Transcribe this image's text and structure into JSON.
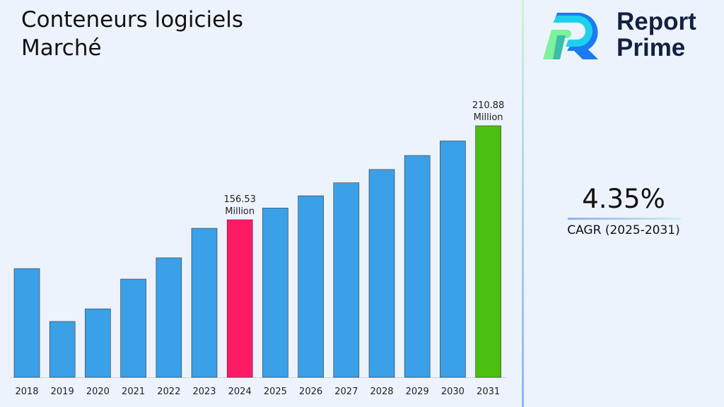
{
  "title_line1": "Conteneurs logiciels",
  "title_line2": "Marché",
  "logo": {
    "line1": "Report",
    "line2": "Prime"
  },
  "cagr": {
    "value": "4.35%",
    "label": "CAGR (2025-2031)"
  },
  "chart_data": {
    "type": "bar",
    "categories": [
      "2018",
      "2019",
      "2020",
      "2021",
      "2022",
      "2023",
      "2024",
      "2025",
      "2026",
      "2027",
      "2028",
      "2029",
      "2030",
      "2031"
    ],
    "values": [
      128.3,
      97.7,
      105.0,
      122.2,
      134.5,
      151.6,
      156.53,
      163.3,
      170.4,
      177.9,
      185.6,
      193.7,
      202.1,
      210.88
    ],
    "ylim": [
      65.4,
      220
    ],
    "grid": false,
    "colors": {
      "default": "#3aa0e8",
      "highlight_2024": "#ff1a66",
      "highlight_2031": "#4cc010"
    },
    "data_labels": [
      {
        "category": "2024",
        "line1": "156.53",
        "line2": "Million"
      },
      {
        "category": "2031",
        "line1": "210.88",
        "line2": "Million"
      }
    ]
  }
}
